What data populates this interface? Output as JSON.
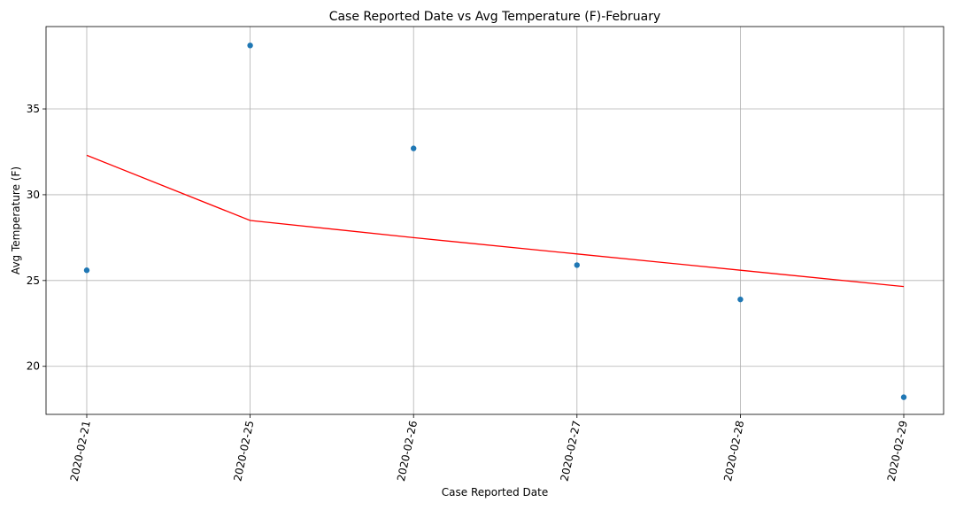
{
  "chart_data": {
    "type": "scatter",
    "title": "Case Reported Date vs Avg Temperature (F)-February",
    "xlabel": "Case Reported Date",
    "ylabel": "Avg Temperature (F)",
    "categories": [
      "2020-02-21",
      "2020-02-25",
      "2020-02-26",
      "2020-02-27",
      "2020-02-28",
      "2020-02-29"
    ],
    "y_ticks": [
      20,
      25,
      30,
      35
    ],
    "ylim": [
      17.2,
      39.8
    ],
    "grid": true,
    "series": [
      {
        "kind": "scatter",
        "values": [
          25.6,
          38.7,
          32.7,
          25.9,
          23.9,
          18.2
        ],
        "color": "#1f77b4"
      },
      {
        "kind": "line",
        "values": [
          32.3,
          28.5,
          27.5,
          26.55,
          25.6,
          24.65
        ],
        "color": "#ff0000"
      }
    ]
  }
}
